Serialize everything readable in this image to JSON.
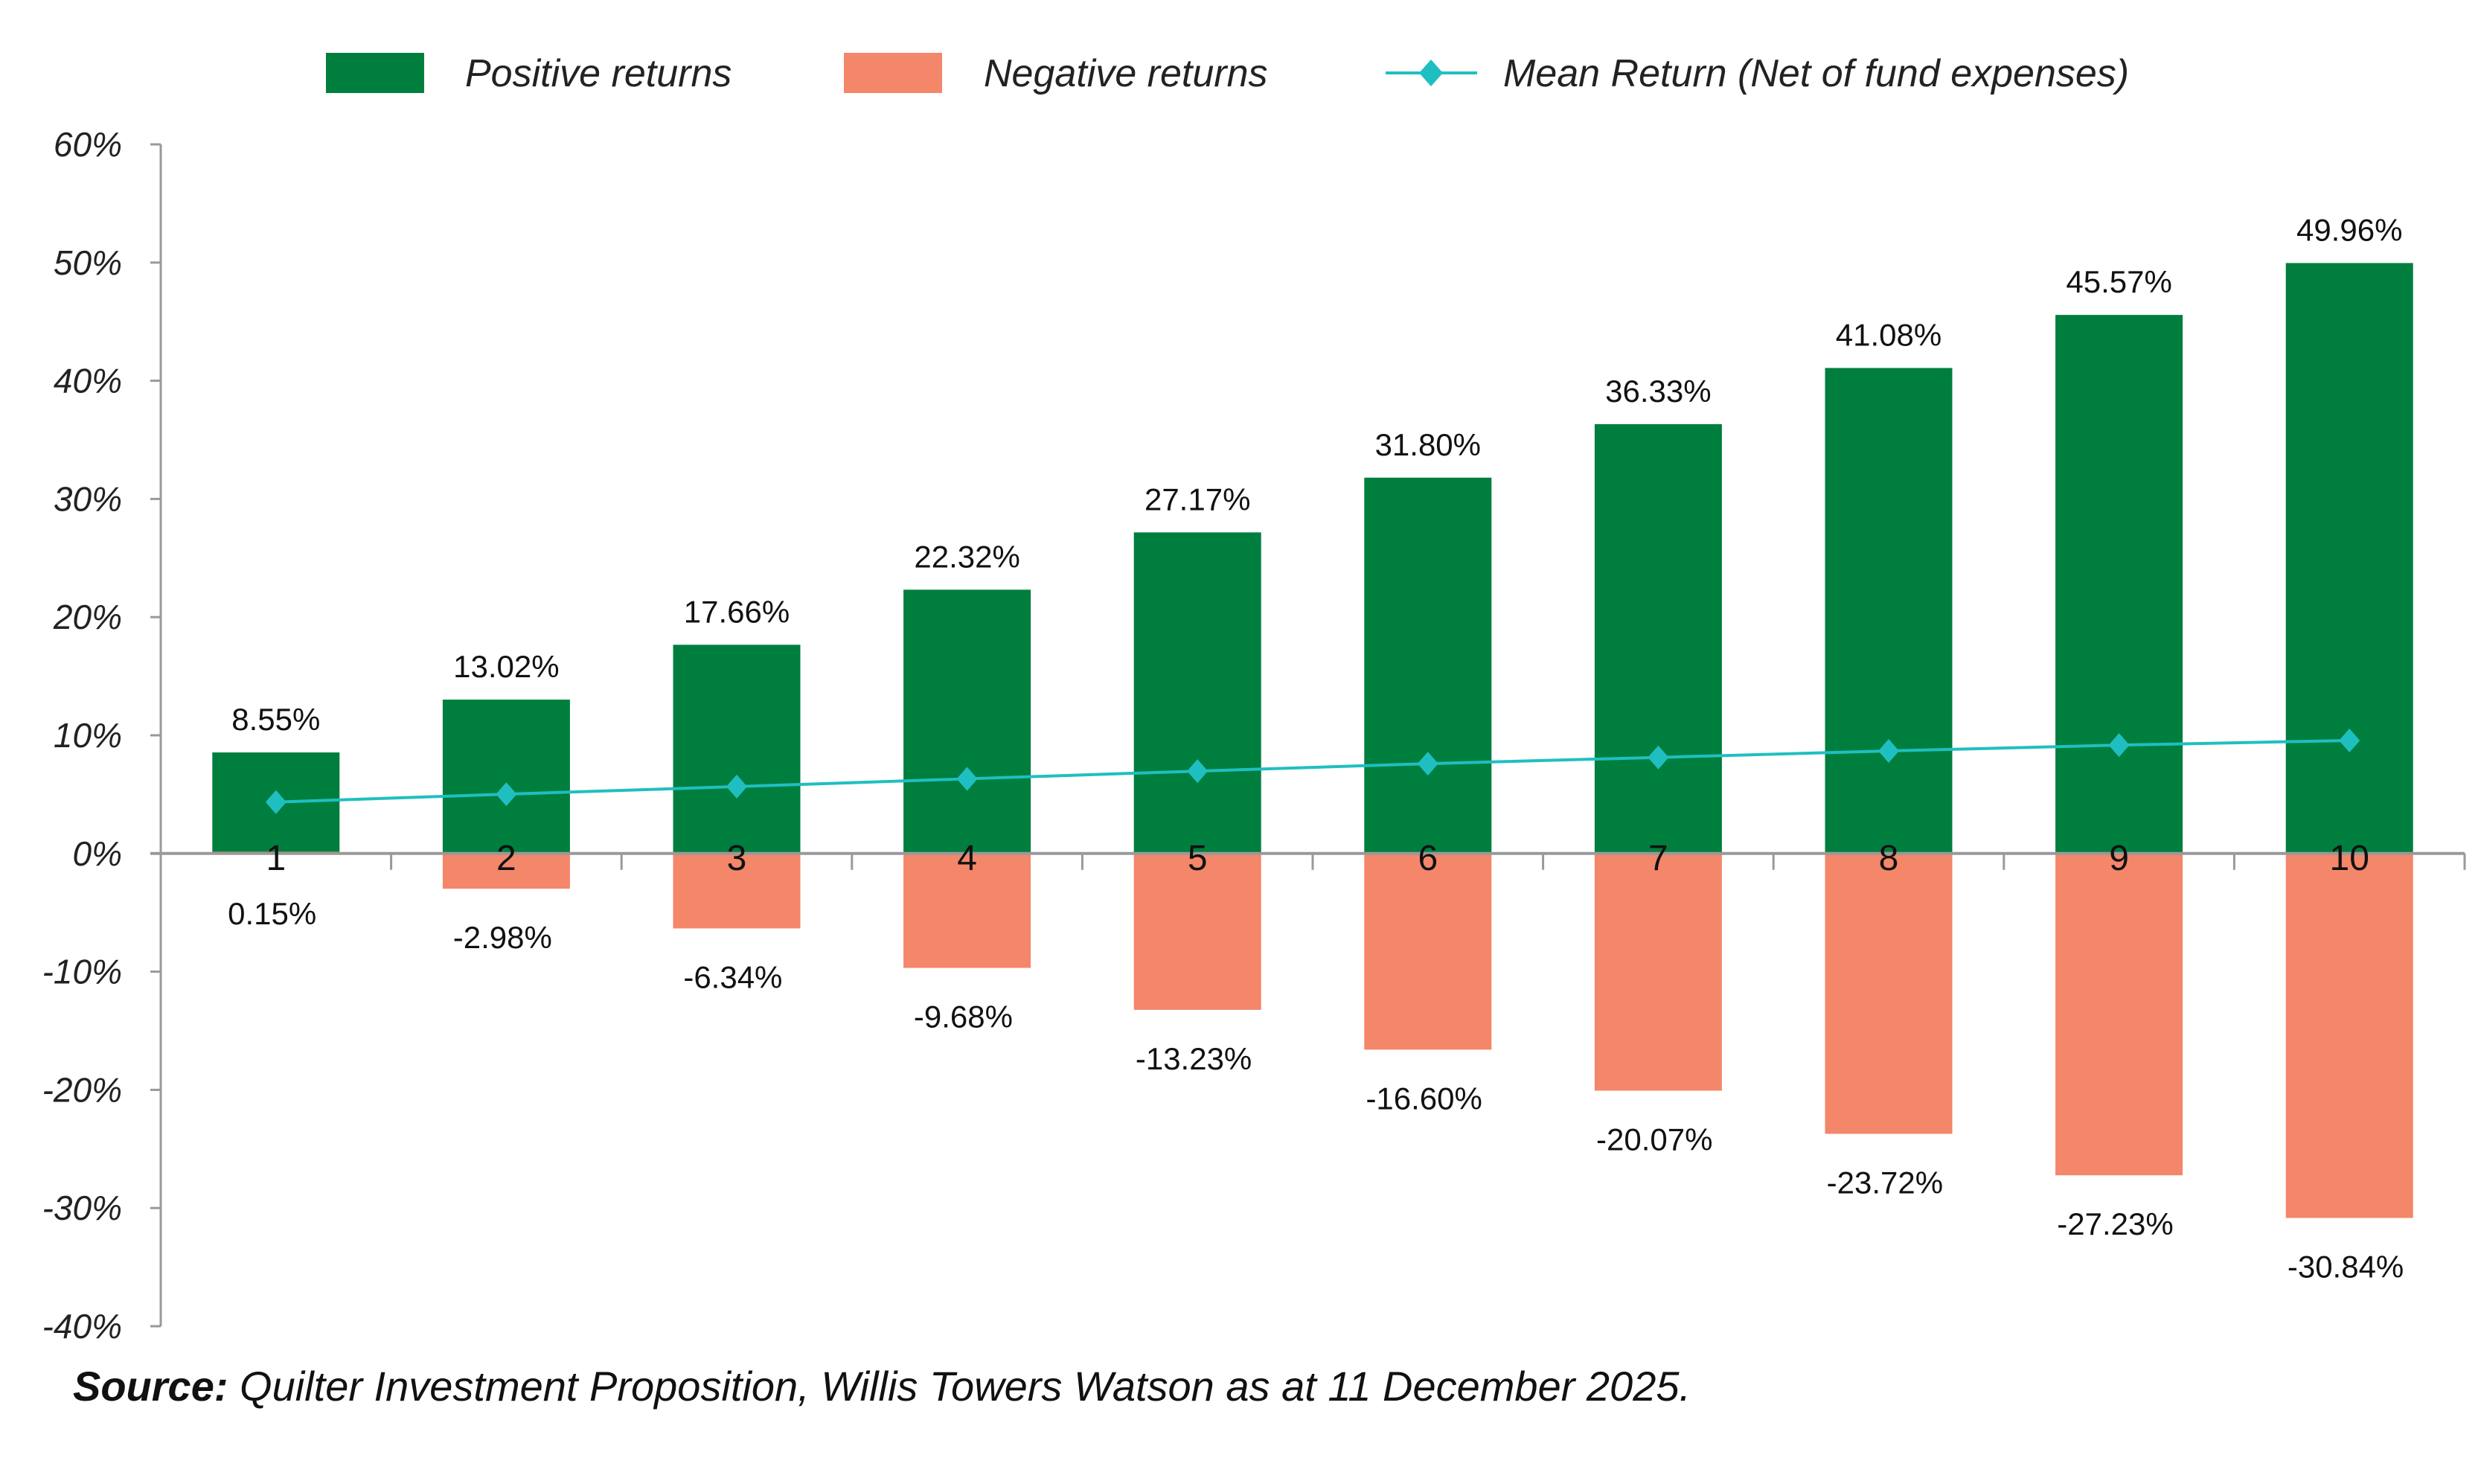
{
  "chart_data": {
    "type": "bar",
    "categories": [
      "1",
      "2",
      "3",
      "4",
      "5",
      "6",
      "7",
      "8",
      "9",
      "10"
    ],
    "series": [
      {
        "name": "Positive returns",
        "kind": "bar",
        "color": "#007E3E",
        "values": [
          8.55,
          13.02,
          17.66,
          22.32,
          27.17,
          31.8,
          36.33,
          41.08,
          45.57,
          49.96
        ],
        "labels": [
          "8.55%",
          "13.02%",
          "17.66%",
          "22.32%",
          "27.17%",
          "31.80%",
          "36.33%",
          "41.08%",
          "45.57%",
          "49.96%"
        ]
      },
      {
        "name": "Negative returns",
        "kind": "bar",
        "color": "#F4866A",
        "values": [
          0.15,
          -2.98,
          -6.34,
          -9.68,
          -13.23,
          -16.6,
          -20.07,
          -23.72,
          -27.23,
          -30.84
        ],
        "labels": [
          "0.15%",
          "-2.98%",
          "-6.34%",
          "-9.68%",
          "-13.23%",
          "-16.60%",
          "-20.07%",
          "-23.72%",
          "-27.23%",
          "-30.84%"
        ]
      },
      {
        "name": "Mean Return (Net of fund expenses)",
        "kind": "line",
        "marker": "diamond",
        "color": "#1FBFC1",
        "values": [
          4.35,
          5.02,
          5.66,
          6.32,
          6.97,
          7.6,
          8.13,
          8.68,
          9.17,
          9.56
        ]
      }
    ],
    "ylim": [
      -40,
      60
    ],
    "yticks": [
      60,
      50,
      40,
      30,
      20,
      10,
      0,
      -10,
      -20,
      -30,
      -40
    ],
    "ytick_labels": [
      "60%",
      "50%",
      "40%",
      "30%",
      "20%",
      "10%",
      "0%",
      "-10%",
      "-20%",
      "-30%",
      "-40%"
    ],
    "grid": false,
    "legend": "top",
    "title": "",
    "xlabel": "",
    "ylabel": ""
  },
  "source": {
    "label": "Source:",
    "text": " Quilter Investment Proposition, Willis Towers Watson as at 11 December 2025."
  }
}
